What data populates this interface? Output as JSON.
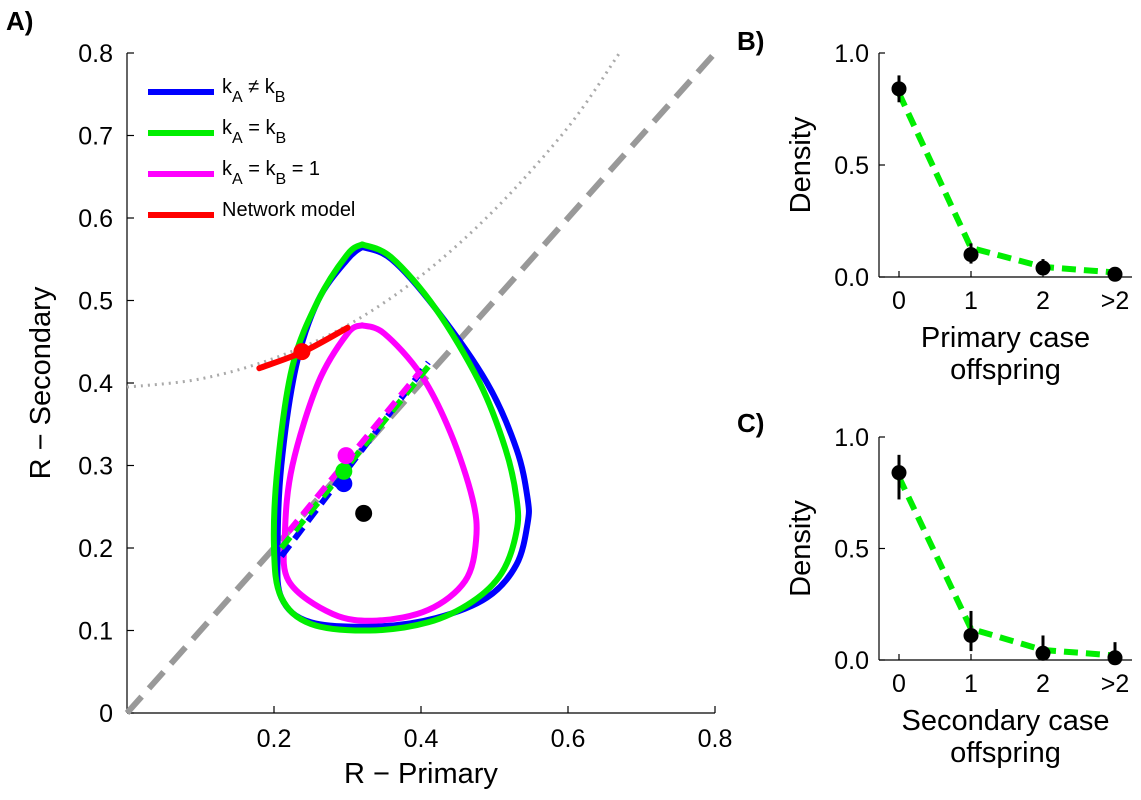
{
  "chart_data": [
    {
      "panel": "A)",
      "type": "line",
      "xlabel": "R − Primary",
      "ylabel": "R − Secondary",
      "xlim": [
        0,
        0.8
      ],
      "ylim": [
        0,
        0.8
      ],
      "xticks": [
        "0.2",
        "0.4",
        "0.6",
        "0.8"
      ],
      "yticks": [
        "0",
        "0.1",
        "0.2",
        "0.3",
        "0.4",
        "0.5",
        "0.6",
        "0.7",
        "0.8"
      ],
      "grid": false,
      "legend_position": "top-left",
      "series": [
        {
          "name": "kA ≠ kB",
          "legend": {
            "a": "k",
            "as": "A",
            "op": " ≠ ",
            "b": "k",
            "bs": "B",
            "tail": ""
          },
          "color": "#0000ff",
          "kind": "contour",
          "x": [
            0.32,
            0.36,
            0.42,
            0.49,
            0.53,
            0.545,
            0.545,
            0.53,
            0.49,
            0.42,
            0.34,
            0.25,
            0.21,
            0.205,
            0.21,
            0.23,
            0.26,
            0.3,
            0.32
          ],
          "y": [
            0.565,
            0.55,
            0.49,
            0.4,
            0.32,
            0.26,
            0.23,
            0.18,
            0.14,
            0.115,
            0.105,
            0.11,
            0.14,
            0.2,
            0.3,
            0.42,
            0.5,
            0.55,
            0.565
          ]
        },
        {
          "name": "kA ≠ kB",
          "color": "#0000ff",
          "kind": "dashed-line",
          "x": [
            0.21,
            0.41
          ],
          "y": [
            0.19,
            0.425
          ]
        },
        {
          "name": "kA ≠ kB",
          "color": "#0000ff",
          "kind": "point",
          "x": [
            0.295
          ],
          "y": [
            0.278
          ]
        },
        {
          "name": "kA = kB",
          "legend": {
            "a": "k",
            "as": "A",
            "op": " = ",
            "b": "k",
            "bs": "B",
            "tail": ""
          },
          "color": "#00ee00",
          "kind": "contour",
          "x": [
            0.32,
            0.36,
            0.42,
            0.48,
            0.515,
            0.53,
            0.53,
            0.51,
            0.47,
            0.41,
            0.33,
            0.25,
            0.21,
            0.2,
            0.205,
            0.225,
            0.26,
            0.3,
            0.32
          ],
          "y": [
            0.568,
            0.552,
            0.49,
            0.4,
            0.32,
            0.26,
            0.22,
            0.17,
            0.135,
            0.11,
            0.1,
            0.108,
            0.14,
            0.2,
            0.3,
            0.42,
            0.5,
            0.556,
            0.568
          ]
        },
        {
          "name": "kA = kB",
          "color": "#00ee00",
          "kind": "dashed-line",
          "x": [
            0.21,
            0.41
          ],
          "y": [
            0.2,
            0.42
          ]
        },
        {
          "name": "kA = kB",
          "color": "#00ee00",
          "kind": "point",
          "x": [
            0.295
          ],
          "y": [
            0.293
          ]
        },
        {
          "name": "kA = kB = 1",
          "legend": {
            "a": "k",
            "as": "A",
            "op": " = ",
            "b": "k",
            "bs": "B",
            "tail": " = 1"
          },
          "color": "#ff00ff",
          "kind": "contour",
          "x": [
            0.32,
            0.35,
            0.4,
            0.44,
            0.47,
            0.475,
            0.46,
            0.41,
            0.34,
            0.28,
            0.22,
            0.215,
            0.225,
            0.26,
            0.3,
            0.32
          ],
          "y": [
            0.47,
            0.46,
            0.41,
            0.34,
            0.26,
            0.21,
            0.16,
            0.125,
            0.112,
            0.12,
            0.16,
            0.22,
            0.3,
            0.4,
            0.46,
            0.47
          ]
        },
        {
          "name": "kA = kB = 1",
          "color": "#ff00ff",
          "kind": "dashed-line",
          "x": [
            0.22,
            0.4
          ],
          "y": [
            0.22,
            0.415
          ]
        },
        {
          "name": "kA = kB = 1",
          "color": "#ff00ff",
          "kind": "point",
          "x": [
            0.298
          ],
          "y": [
            0.312
          ]
        },
        {
          "name": "Network model",
          "legend": {
            "text": "Network model"
          },
          "color": "#ff0000",
          "kind": "line",
          "x": [
            0.18,
            0.24,
            0.3
          ],
          "y": [
            0.418,
            0.438,
            0.467
          ]
        },
        {
          "name": "Network model",
          "color": "#ff0000",
          "kind": "point",
          "x": [
            0.238
          ],
          "y": [
            0.438
          ]
        },
        {
          "name": "",
          "color": "#000000",
          "kind": "point",
          "x": [
            0.322
          ],
          "y": [
            0.242
          ]
        },
        {
          "name": "",
          "color": "#999999",
          "kind": "diagonal",
          "x": [
            0,
            0.8
          ],
          "y": [
            0,
            0.8
          ]
        },
        {
          "name": "",
          "color": "#aaaaaa",
          "kind": "dotted-curve",
          "x": [
            0.0,
            0.1,
            0.2,
            0.3,
            0.4,
            0.5,
            0.6,
            0.67
          ],
          "y": [
            0.395,
            0.405,
            0.43,
            0.47,
            0.53,
            0.61,
            0.71,
            0.8
          ]
        }
      ]
    },
    {
      "panel": "B)",
      "type": "scatter",
      "xlabel_lines": [
        "Primary case",
        "offspring"
      ],
      "ylabel": "Density",
      "categories": [
        "0",
        "1",
        "2",
        ">2"
      ],
      "ylim": [
        0,
        1.0
      ],
      "yticks": [
        "0.0",
        "0.5",
        "1.0"
      ],
      "grid": false,
      "points": {
        "values": [
          0.84,
          0.1,
          0.04,
          0.012
        ],
        "err_low": [
          0.78,
          0.06,
          0.015,
          0.0
        ],
        "err_high": [
          0.9,
          0.15,
          0.08,
          0.04
        ]
      },
      "fit": {
        "color": "#00ee00",
        "values": [
          0.82,
          0.13,
          0.045,
          0.02
        ]
      }
    },
    {
      "panel": "C)",
      "type": "scatter",
      "xlabel_lines": [
        "Secondary case",
        "offspring"
      ],
      "ylabel": "Density",
      "categories": [
        "0",
        "1",
        "2",
        ">2"
      ],
      "ylim": [
        0,
        1.0
      ],
      "yticks": [
        "0.0",
        "0.5",
        "1.0"
      ],
      "grid": false,
      "points": {
        "values": [
          0.84,
          0.11,
          0.03,
          0.01
        ],
        "err_low": [
          0.72,
          0.04,
          0.0,
          0.0
        ],
        "err_high": [
          0.92,
          0.22,
          0.11,
          0.08
        ]
      },
      "fit": {
        "color": "#00ee00",
        "values": [
          0.82,
          0.14,
          0.045,
          0.02
        ]
      }
    }
  ]
}
